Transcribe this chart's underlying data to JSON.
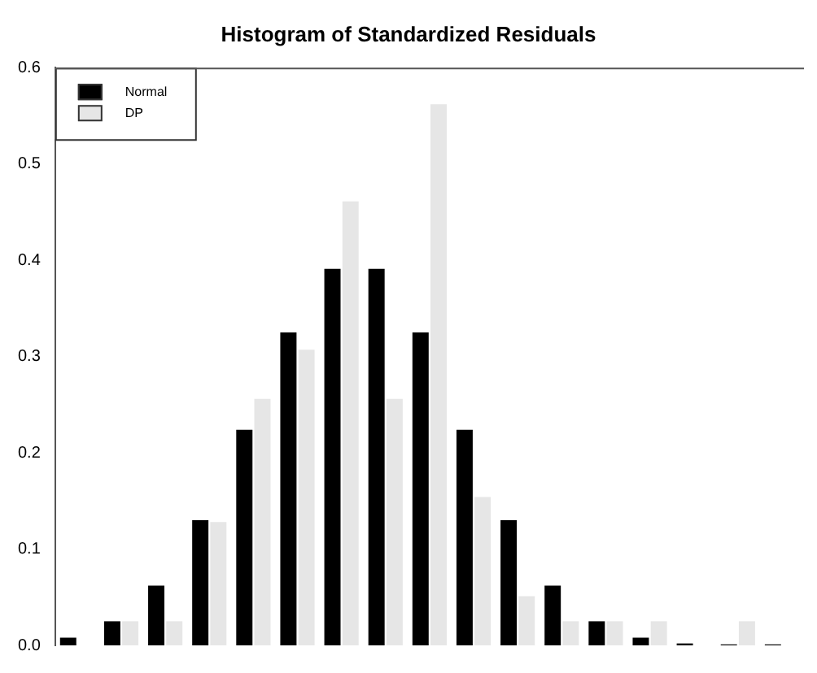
{
  "chart_data": {
    "type": "bar",
    "title": "Histogram of Standardized Residuals",
    "categories": [
      null,
      null,
      null,
      null,
      null,
      null,
      null,
      null,
      null,
      null,
      null,
      null,
      null,
      null,
      null,
      null,
      null
    ],
    "series": [
      {
        "name": "Normal",
        "color": "#000000",
        "values": [
          0.008,
          0.025,
          0.062,
          0.13,
          0.224,
          0.325,
          0.391,
          0.391,
          0.325,
          0.224,
          0.13,
          0.062,
          0.025,
          0.008,
          0.002,
          0.001,
          0.001
        ]
      },
      {
        "name": "DP",
        "color": "#e6e6e6",
        "values": [
          0,
          0.025,
          0.025,
          0.128,
          0.256,
          0.307,
          0.461,
          0.256,
          0.562,
          0.154,
          0.051,
          0.025,
          0.025,
          0.025,
          0,
          0.025,
          0
        ]
      }
    ],
    "ylim": [
      0,
      0.6
    ],
    "yticks": [
      {
        "value": 0,
        "label": "0.0"
      },
      0.1,
      0.2,
      0.3,
      0.4,
      0.5,
      0.6
    ],
    "grid": false,
    "legend": "top left",
    "tick_labels": "y"
  }
}
